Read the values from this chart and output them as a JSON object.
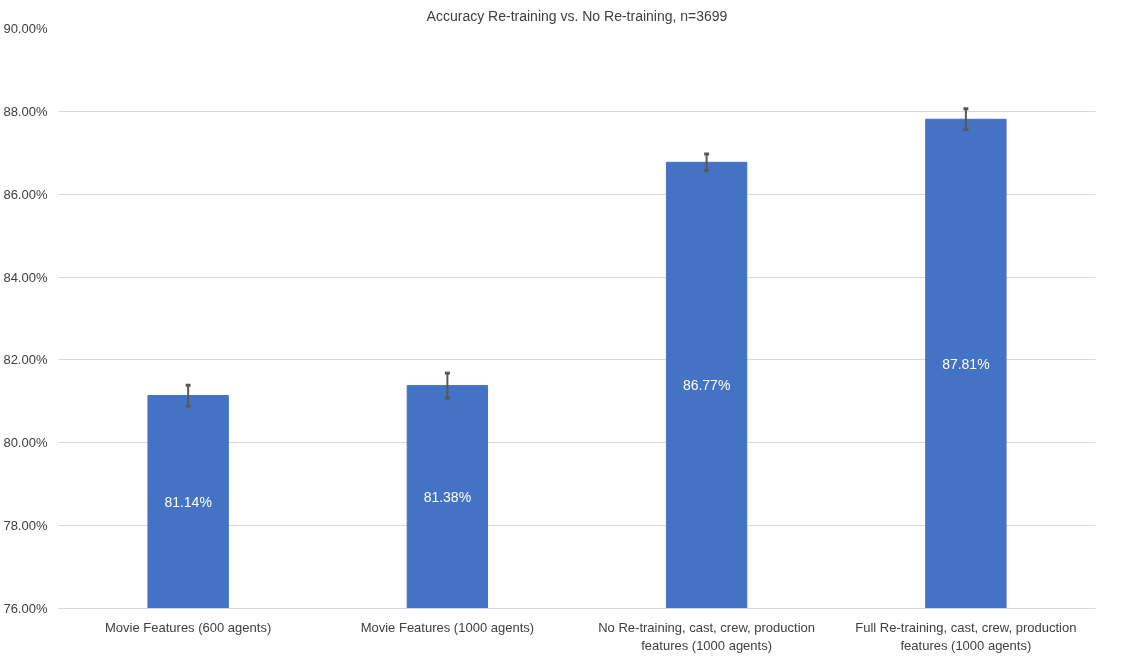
{
  "chart_data": {
    "type": "bar",
    "title": "Accuracy Re-training vs. No Re-training, n=3699",
    "categories": [
      "Movie Features (600 agents)",
      "Movie Features (1000 agents)",
      "No Re-training, cast, crew, production features (1000 agents)",
      "Full Re-training, cast, crew, production features (1000 agents)"
    ],
    "values": [
      81.14,
      81.38,
      86.77,
      87.81
    ],
    "errors": [
      0.25,
      0.3,
      0.2,
      0.25
    ],
    "value_labels": [
      "81.14%",
      "81.38%",
      "86.77%",
      "87.81%"
    ],
    "color": "#4472c4",
    "ylim": [
      76,
      90
    ],
    "yticks": [
      {
        "value": 76,
        "label": "76.00%"
      },
      {
        "value": 78,
        "label": "78.00%"
      },
      {
        "value": 80,
        "label": "80.00%"
      },
      {
        "value": 82,
        "label": "82.00%"
      },
      {
        "value": 84,
        "label": "84.00%"
      },
      {
        "value": 86,
        "label": "86.00%"
      },
      {
        "value": 88,
        "label": "88.00%"
      },
      {
        "value": 90,
        "label": "90.00%"
      }
    ],
    "grid": "y"
  }
}
